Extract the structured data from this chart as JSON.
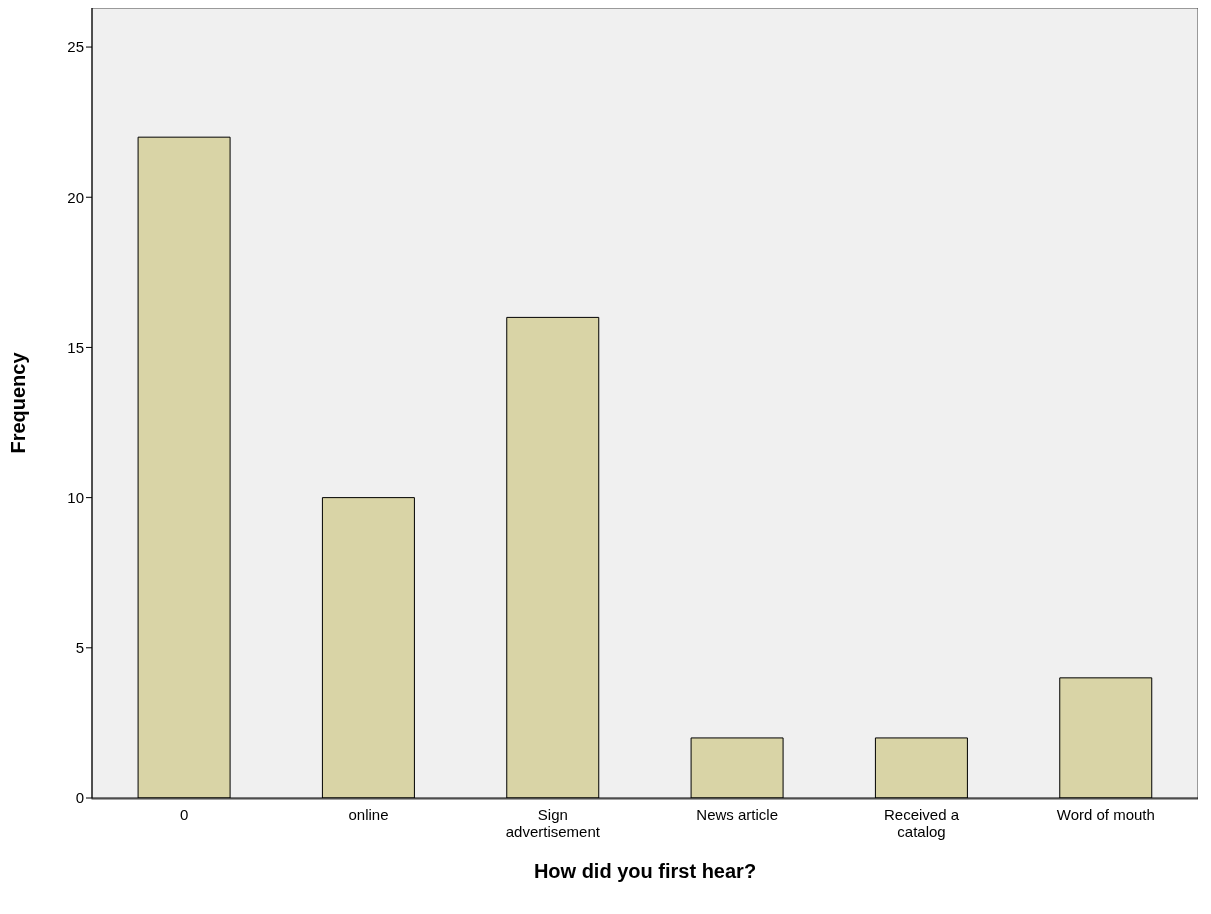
{
  "chart_data": {
    "type": "bar",
    "xlabel": "How did you first hear?",
    "ylabel": "Frequency",
    "categories": [
      "0",
      "online",
      "Sign advertisement",
      "News article",
      "Received a catalog",
      "Word of mouth"
    ],
    "values": [
      22,
      10,
      16,
      2,
      2,
      4
    ],
    "color": "#d9d4a6",
    "ylim": [
      0,
      26.3
    ],
    "yticks": [
      0,
      5,
      10,
      15,
      20,
      25
    ]
  }
}
